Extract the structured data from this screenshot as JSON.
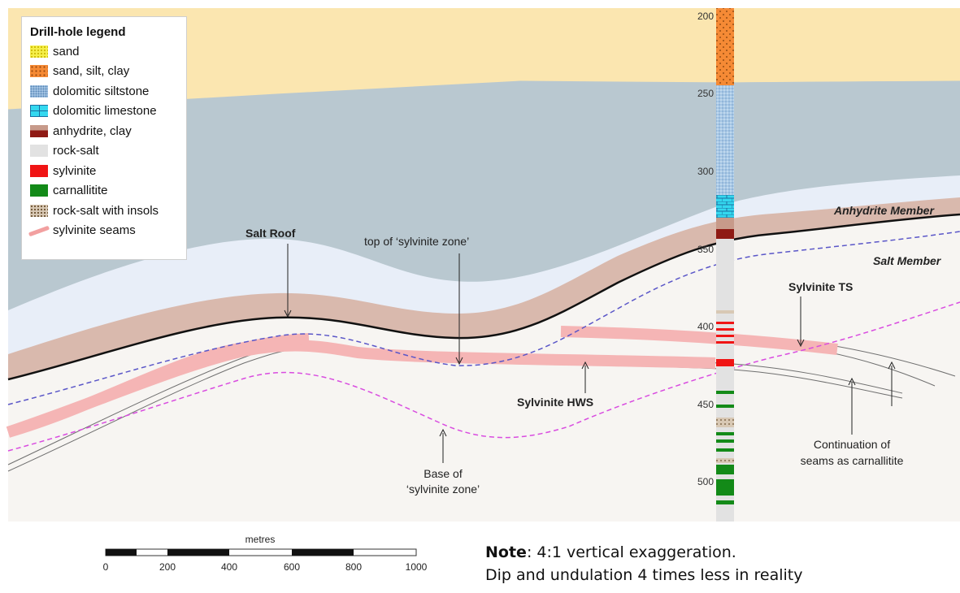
{
  "legend": {
    "title": "Drill-hole legend",
    "items": [
      {
        "label": "sand",
        "color": "#f5ef4a"
      },
      {
        "label": "sand, silt, clay",
        "color": "#f58a35"
      },
      {
        "label": "dolomitic siltstone",
        "color": "#a8c8e6"
      },
      {
        "label": "dolomitic limestone",
        "color": "#34d8ef"
      },
      {
        "label": "anhydrite, clay",
        "color": "#8f1a14"
      },
      {
        "label": "rock-salt",
        "color": "#e2e2e2"
      },
      {
        "label": "sylvinite",
        "color": "#f01414"
      },
      {
        "label": "carnallitite",
        "color": "#138a18"
      },
      {
        "label": "rock-salt with insols",
        "color": "#d8c8b4"
      },
      {
        "label": "sylvinite seams",
        "color": "#f2a0a0"
      }
    ]
  },
  "labels": {
    "salt_roof": "Salt Roof",
    "top_zone": "top of ‘sylvinite zone’",
    "anhydrite_member": "Anhydrite Member",
    "salt_member": "Salt Member",
    "sylvinite_ts": "Sylvinite TS",
    "sylvinite_hws": "Sylvinite HWS",
    "base_zone_1": "Base of",
    "base_zone_2": "‘sylvinite zone’",
    "continuation_1": "Continuation of",
    "continuation_2": "seams as carnallitite"
  },
  "depth_ticks": [
    "200",
    "250",
    "300",
    "350",
    "400",
    "450",
    "500"
  ],
  "scale_bar": {
    "unit": "metres",
    "ticks": [
      "0",
      "200",
      "400",
      "600",
      "800",
      "1000"
    ]
  },
  "note": {
    "bold": "Note",
    "line1": ": 4:1 vertical exaggeration.",
    "line2": "Dip and undulation 4 times less in reality"
  },
  "colors": {
    "overburden": "#fbe6b0",
    "siltstone_zone": "#b9c8d0",
    "pale_band": "#e8eef8",
    "anhydrite_band": "#d9b9ad",
    "salt_member": "#f7f5f2",
    "seam": "#f5b5b5",
    "top_zone_line": "#5a56c8",
    "base_zone_line": "#d94ce0"
  }
}
